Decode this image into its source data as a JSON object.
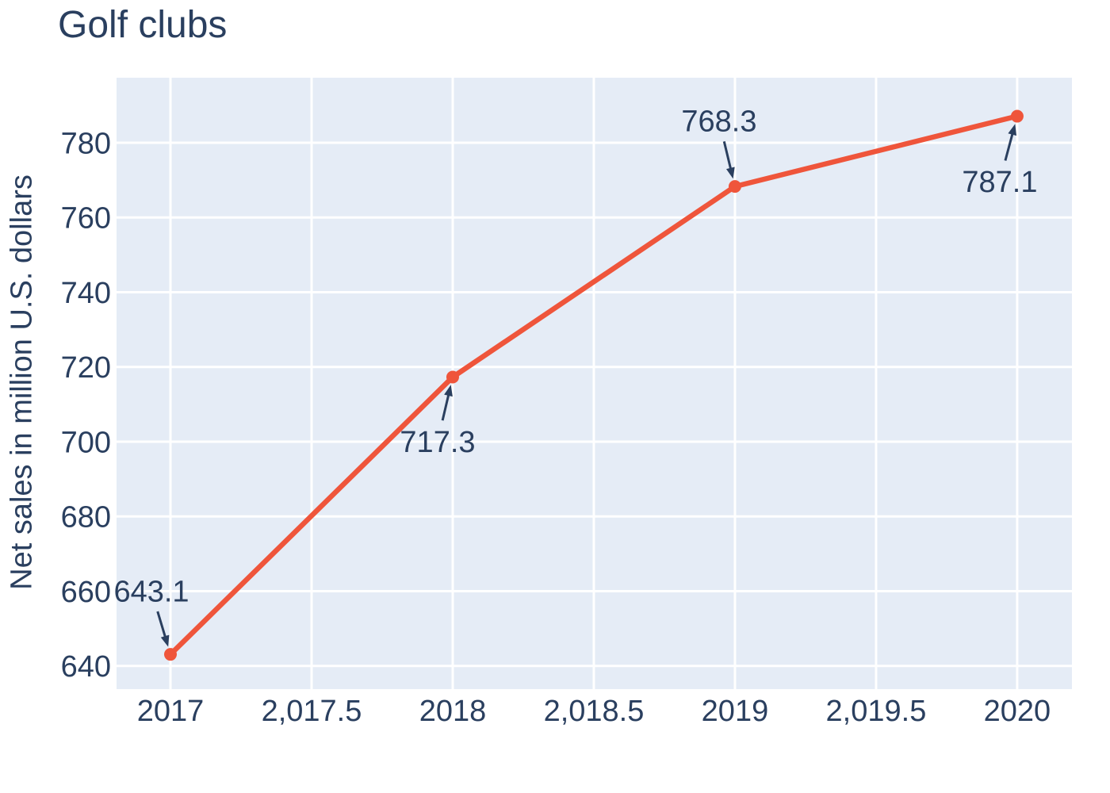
{
  "page": {
    "title": "Golf clubs"
  },
  "chart_data": {
    "type": "line",
    "title": "Golf clubs",
    "xlabel": "",
    "ylabel": "Net sales in million U.S. dollars",
    "series": [
      {
        "name": "Golf clubs",
        "x": [
          2017,
          2018,
          2019,
          2020
        ],
        "y": [
          643.1,
          717.3,
          768.3,
          787.1
        ]
      }
    ],
    "annotations": [
      {
        "text": "643.1",
        "x": 2017,
        "y": 643.1,
        "ax": -24,
        "ay": -80
      },
      {
        "text": "717.3",
        "x": 2018,
        "y": 717.3,
        "ax": -19,
        "ay": 81
      },
      {
        "text": "768.3",
        "x": 2019,
        "y": 768.3,
        "ax": -20,
        "ay": -83
      },
      {
        "text": "787.1",
        "x": 2020,
        "y": 787.1,
        "ax": -22,
        "ay": 82
      }
    ],
    "x_ticks": {
      "values": [
        2017,
        2017.5,
        2018,
        2018.5,
        2019,
        2019.5,
        2020
      ],
      "labels": [
        "2017",
        "2,017.5",
        "2018",
        "2,018.5",
        "2019",
        "2,019.5",
        "2020"
      ]
    },
    "y_ticks": {
      "values": [
        640,
        660,
        680,
        700,
        720,
        740,
        760,
        780
      ],
      "labels": [
        "640",
        "660",
        "680",
        "700",
        "720",
        "740",
        "760",
        "780"
      ]
    },
    "xlim": [
      2016.809,
      2020.194
    ],
    "ylim": [
      633.8,
      797.4
    ],
    "grid": true,
    "legend_position": "none",
    "colors": {
      "line": "#ef553b",
      "marker": "#ef553b",
      "plot_bg": "#e5ecf6",
      "grid": "#ffffff",
      "text": "#2a3f5f",
      "arrow": "#2a3f5f",
      "page_bg": "#ffffff"
    }
  }
}
